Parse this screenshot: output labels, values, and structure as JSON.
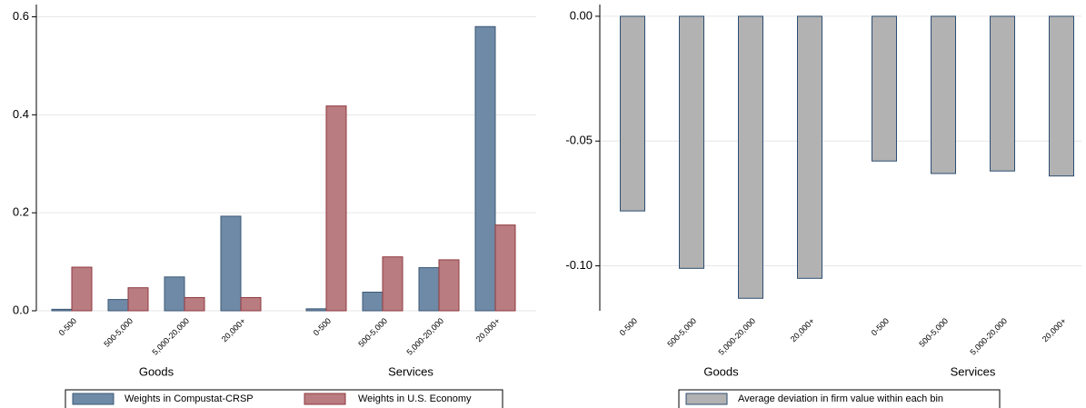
{
  "chart_data": [
    {
      "type": "bar",
      "groups": [
        "Goods",
        "Services"
      ],
      "categories": [
        "0-500",
        "500-5,000",
        "5,000-20,000",
        "20,000+",
        "0-500",
        "500-5,000",
        "5,000-20,000",
        "20,000+"
      ],
      "series": [
        {
          "name": "Weights in Compustat-CRSP",
          "color": "#6f8aa6",
          "values": [
            0.003,
            0.023,
            0.069,
            0.193,
            0.004,
            0.038,
            0.088,
            0.58
          ]
        },
        {
          "name": "Weights in U.S. Economy",
          "color": "#b97c80",
          "values": [
            0.089,
            0.047,
            0.027,
            0.027,
            0.418,
            0.11,
            0.104,
            0.175
          ]
        }
      ],
      "ylim": [
        0,
        0.625
      ],
      "yticks": [
        {
          "value": 0,
          "label": "0.0"
        },
        {
          "value": 0.2,
          "label": "0.2"
        },
        {
          "value": 0.4,
          "label": "0.4"
        },
        {
          "value": 0.6,
          "label": "0.6"
        }
      ],
      "grid": true
    },
    {
      "type": "bar",
      "groups": [
        "Goods",
        "Services"
      ],
      "categories": [
        "0-500",
        "500-5,000",
        "5,000-20,000",
        "20,000+",
        "0-500",
        "500-5,000",
        "5,000-20,000",
        "20,000+"
      ],
      "series": [
        {
          "name": "Average deviation in firm value within each bin",
          "color": "#b2b2b2",
          "values": [
            -0.078,
            -0.101,
            -0.113,
            -0.105,
            -0.058,
            -0.063,
            -0.062,
            -0.064
          ]
        }
      ],
      "ylim": [
        -0.118,
        0.0047
      ],
      "yticks": [
        {
          "value": 0,
          "label": "0.00"
        },
        {
          "value": -0.05,
          "label": "-0.05"
        },
        {
          "value": -0.1,
          "label": "-0.10"
        }
      ],
      "grid": true
    }
  ]
}
